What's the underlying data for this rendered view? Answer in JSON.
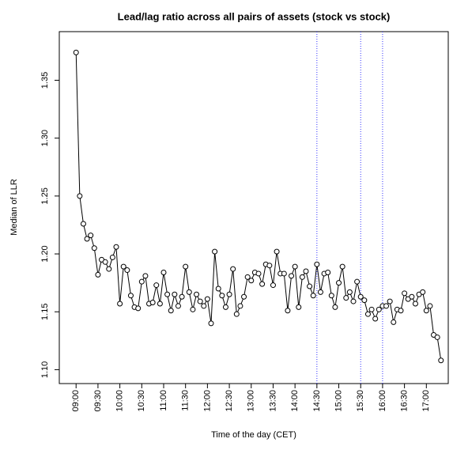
{
  "chart_data": {
    "type": "line",
    "title": "Lead/lag ratio across all pairs of assets (stock vs stock)",
    "x_label": "Time of the day (CET)",
    "y_label": "Median of LLR",
    "color": "#000000",
    "x": [
      540,
      545,
      550,
      555,
      560,
      565,
      570,
      575,
      580,
      585,
      590,
      595,
      600,
      605,
      610,
      615,
      620,
      625,
      630,
      635,
      640,
      645,
      650,
      655,
      660,
      665,
      670,
      675,
      680,
      685,
      690,
      695,
      700,
      705,
      710,
      715,
      720,
      725,
      730,
      735,
      740,
      745,
      750,
      755,
      760,
      765,
      770,
      775,
      780,
      785,
      790,
      795,
      800,
      805,
      810,
      815,
      820,
      825,
      830,
      835,
      840,
      845,
      850,
      855,
      860,
      865,
      870,
      875,
      880,
      885,
      890,
      895,
      900,
      905,
      910,
      915,
      920,
      925,
      930,
      935,
      940,
      945,
      950,
      955,
      960,
      965,
      970,
      975,
      980,
      985,
      990,
      995,
      1000,
      1005,
      1010,
      1015,
      1020,
      1025,
      1030,
      1035,
      1040
    ],
    "values": [
      1.374,
      1.25,
      1.226,
      1.213,
      1.216,
      1.205,
      1.182,
      1.195,
      1.193,
      1.187,
      1.197,
      1.206,
      1.157,
      1.189,
      1.186,
      1.164,
      1.154,
      1.153,
      1.176,
      1.181,
      1.157,
      1.158,
      1.173,
      1.157,
      1.184,
      1.165,
      1.151,
      1.165,
      1.155,
      1.163,
      1.189,
      1.167,
      1.152,
      1.165,
      1.159,
      1.155,
      1.161,
      1.14,
      1.202,
      1.17,
      1.164,
      1.154,
      1.165,
      1.187,
      1.148,
      1.155,
      1.163,
      1.18,
      1.177,
      1.184,
      1.183,
      1.174,
      1.191,
      1.19,
      1.173,
      1.202,
      1.183,
      1.183,
      1.151,
      1.181,
      1.189,
      1.154,
      1.18,
      1.185,
      1.172,
      1.164,
      1.191,
      1.167,
      1.183,
      1.184,
      1.164,
      1.154,
      1.175,
      1.189,
      1.162,
      1.167,
      1.159,
      1.176,
      1.163,
      1.16,
      1.148,
      1.152,
      1.144,
      1.152,
      1.155,
      1.155,
      1.159,
      1.141,
      1.152,
      1.151,
      1.166,
      1.161,
      1.163,
      1.157,
      1.165,
      1.167,
      1.151,
      1.155,
      1.13,
      1.128,
      1.108
    ],
    "xlim": [
      517,
      1050
    ],
    "ylim": [
      1.088,
      1.392
    ],
    "xticks": [
      {
        "value": 540,
        "label": "09:00"
      },
      {
        "value": 570,
        "label": "09:30"
      },
      {
        "value": 600,
        "label": "10:00"
      },
      {
        "value": 630,
        "label": "10:30"
      },
      {
        "value": 660,
        "label": "11:00"
      },
      {
        "value": 690,
        "label": "11:30"
      },
      {
        "value": 720,
        "label": "12:00"
      },
      {
        "value": 750,
        "label": "12:30"
      },
      {
        "value": 780,
        "label": "13:00"
      },
      {
        "value": 810,
        "label": "13:30"
      },
      {
        "value": 840,
        "label": "14:00"
      },
      {
        "value": 870,
        "label": "14:30"
      },
      {
        "value": 900,
        "label": "15:00"
      },
      {
        "value": 930,
        "label": "15:30"
      },
      {
        "value": 960,
        "label": "16:00"
      },
      {
        "value": 990,
        "label": "16:30"
      },
      {
        "value": 1020,
        "label": "17:00"
      }
    ],
    "yticks": [
      {
        "value": 1.1,
        "label": "1.10"
      },
      {
        "value": 1.15,
        "label": "1.15"
      },
      {
        "value": 1.2,
        "label": "1.20"
      },
      {
        "value": 1.25,
        "label": "1.25"
      },
      {
        "value": 1.3,
        "label": "1.30"
      },
      {
        "value": 1.35,
        "label": "1.35"
      }
    ],
    "vlines": {
      "x": [
        870,
        930,
        960
      ],
      "color": "#3333ff"
    }
  }
}
